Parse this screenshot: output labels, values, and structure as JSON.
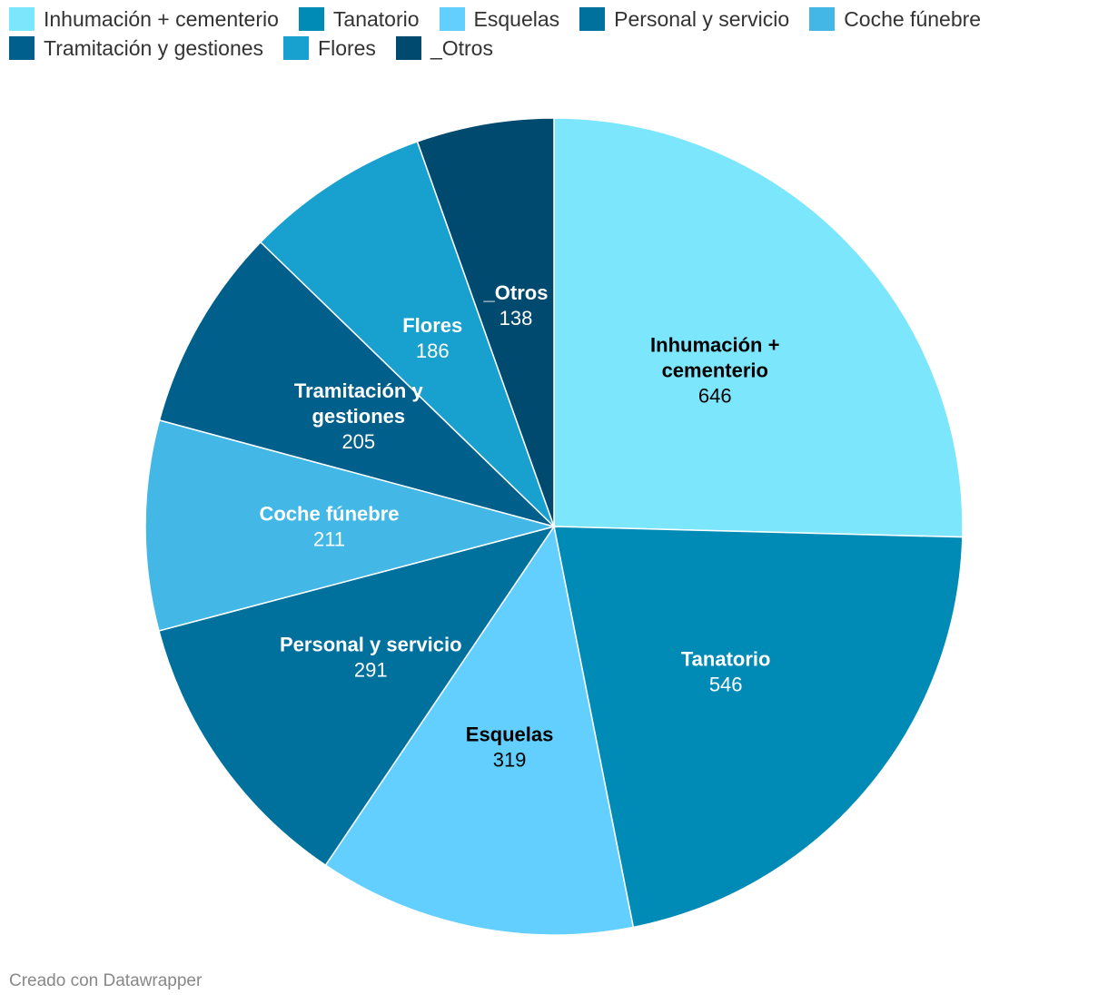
{
  "chart_data": {
    "type": "pie",
    "legend_position": "top-left",
    "slices": [
      {
        "label": "Inhumación + cementerio",
        "value": 646,
        "color": "#7ce6fd",
        "label_lines": [
          "Inhumación +",
          "cementerio"
        ],
        "text_color": "#000000"
      },
      {
        "label": "Tanatorio",
        "value": 546,
        "color": "#008bb6",
        "label_lines": [
          "Tanatorio"
        ],
        "text_color": "#ffffff"
      },
      {
        "label": "Esquelas",
        "value": 319,
        "color": "#62cfff",
        "label_lines": [
          "Esquelas"
        ],
        "text_color": "#000000"
      },
      {
        "label": "Personal y servicio",
        "value": 291,
        "color": "#00709d",
        "label_lines": [
          "Personal y servicio"
        ],
        "text_color": "#ffffff"
      },
      {
        "label": "Coche fúnebre",
        "value": 211,
        "color": "#43b7e5",
        "label_lines": [
          "Coche fúnebre"
        ],
        "text_color": "#ffffff"
      },
      {
        "label": "Tramitación y gestiones",
        "value": 205,
        "color": "#005f8b",
        "label_lines": [
          "Tramitación y",
          "gestiones"
        ],
        "text_color": "#ffffff"
      },
      {
        "label": "Flores",
        "value": 186,
        "color": "#18a0cf",
        "label_lines": [
          "Flores"
        ],
        "text_color": "#ffffff"
      },
      {
        "label": "_Otros",
        "value": 138,
        "color": "#00496f",
        "label_lines": [
          "_Otros"
        ],
        "text_color": "#ffffff"
      }
    ]
  },
  "credit": "Creado con Datawrapper"
}
